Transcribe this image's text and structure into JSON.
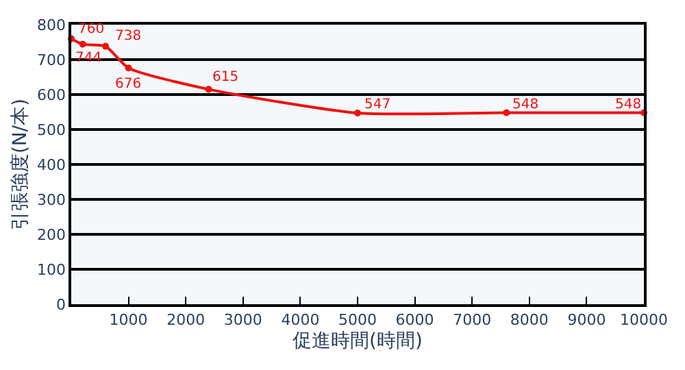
{
  "chart_data": {
    "type": "line",
    "xlabel": "促進時間(時間)",
    "ylabel": "引張強度(N/本)",
    "x": [
      0,
      200,
      600,
      1000,
      2400,
      5000,
      7600,
      10000
    ],
    "series": [
      {
        "color": "#ee1111",
        "values": [
          760,
          744,
          738,
          676,
          615,
          547,
          548,
          548
        ]
      }
    ],
    "xlim": [
      0,
      10000
    ],
    "xticks": [
      1000,
      2000,
      3000,
      4000,
      5000,
      6000,
      7000,
      8000,
      9000,
      10000
    ],
    "ylim": [
      0,
      800
    ],
    "yticks": [
      0,
      100,
      200,
      300,
      400,
      500,
      600,
      700,
      800
    ],
    "grid": "y",
    "marker": "circle",
    "line_style": "solid",
    "data_labels": true
  }
}
